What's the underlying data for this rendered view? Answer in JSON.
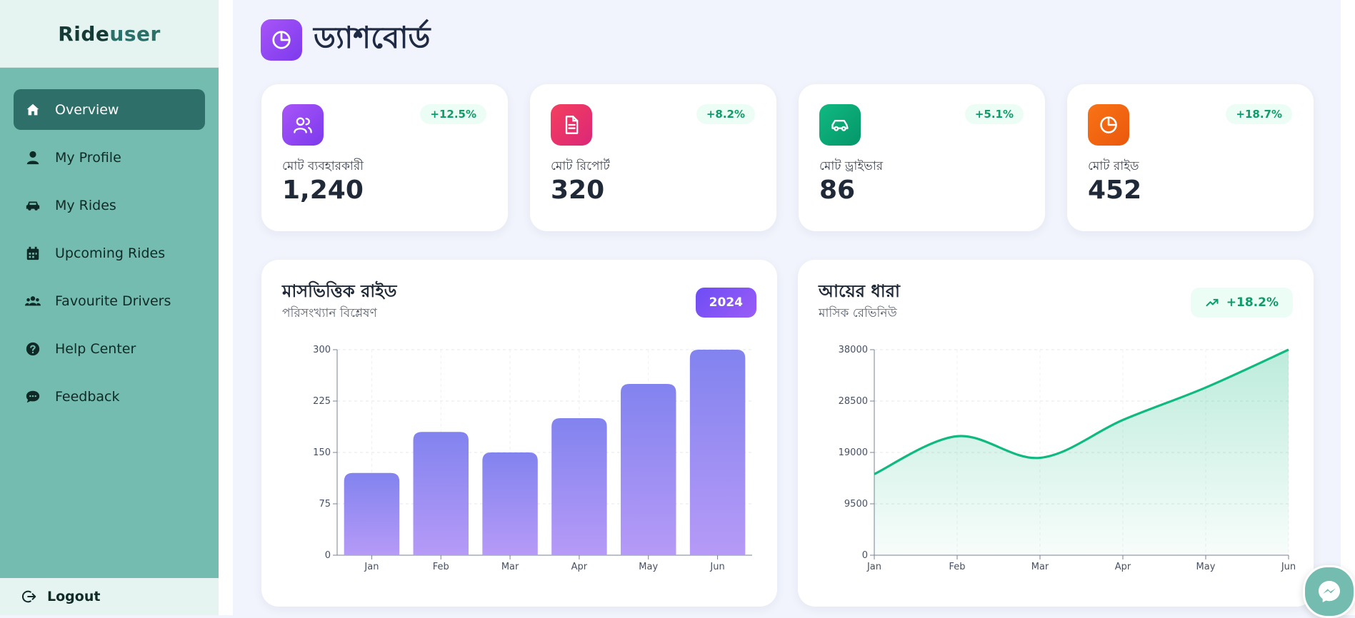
{
  "brand": {
    "part1": "Ride",
    "part2": "user"
  },
  "sidebar": {
    "items": [
      {
        "label": "Overview",
        "icon": "home-icon",
        "active": true
      },
      {
        "label": "My Profile",
        "icon": "user-icon"
      },
      {
        "label": "My Rides",
        "icon": "car-icon"
      },
      {
        "label": "Upcoming Rides",
        "icon": "calendar-icon"
      },
      {
        "label": "Favourite Drivers",
        "icon": "users-icon"
      },
      {
        "label": "Help Center",
        "icon": "question-icon"
      },
      {
        "label": "Feedback",
        "icon": "comment-icon"
      }
    ],
    "logout_label": "Logout"
  },
  "header": {
    "title": "ড্যাশবোর্ড",
    "icon": "pie-chart-icon"
  },
  "stats": [
    {
      "label": "মোট ব্যবহারকারী",
      "value": "1,240",
      "change": "+12.5%",
      "icon": "users-icon",
      "color": "#9333ea"
    },
    {
      "label": "মোট রিপোর্ট",
      "value": "320",
      "change": "+8.2%",
      "icon": "document-icon",
      "color": "#e11d5a"
    },
    {
      "label": "মোট ড্রাইভার",
      "value": "86",
      "change": "+5.1%",
      "icon": "car-icon",
      "color": "#059669"
    },
    {
      "label": "মোট রাইড",
      "value": "452",
      "change": "+18.7%",
      "icon": "pie-chart-icon",
      "color": "#ea580c"
    }
  ],
  "chart_data": [
    {
      "type": "bar",
      "title": "মাসভিত্তিক রাইড",
      "subtitle": "পরিসংখ্যান বিশ্লেষণ",
      "badge": "2024",
      "categories": [
        "Jan",
        "Feb",
        "Mar",
        "Apr",
        "May",
        "Jun"
      ],
      "values": [
        120,
        180,
        150,
        200,
        250,
        300
      ],
      "ylim": [
        0,
        300
      ],
      "yticks": [
        "0",
        "75",
        "150",
        "225",
        "300"
      ],
      "grid": true
    },
    {
      "type": "area",
      "title": "আয়ের ধারা",
      "subtitle": "মাসিক রেভিনিউ",
      "badge": "+18.2%",
      "categories": [
        "Jan",
        "Feb",
        "Mar",
        "Apr",
        "May",
        "Jun"
      ],
      "values": [
        15000,
        22000,
        18000,
        25000,
        31000,
        38000
      ],
      "ylim": [
        0,
        38000
      ],
      "yticks": [
        "0",
        "9500",
        "19000",
        "28500",
        "38000"
      ],
      "grid": true,
      "color": "#10b981"
    }
  ]
}
